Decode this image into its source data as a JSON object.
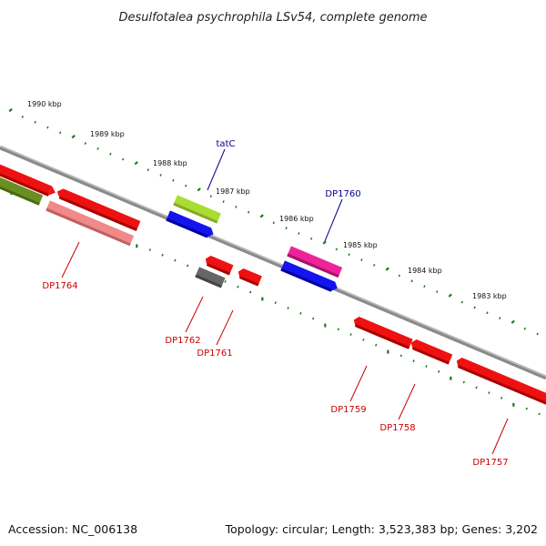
{
  "title": "Desulfotalea psychrophila LSv54, complete genome",
  "footer": {
    "accession": "Accession: NC_006138",
    "summary": "Topology: circular; Length: 3,523,383 bp; Genes: 3,202"
  },
  "scale_labels": [
    "1990 kbp",
    "1989 kbp",
    "1988 kbp",
    "1987 kbp",
    "1986 kbp",
    "1985 kbp",
    "1984 kbp",
    "1983 kbp"
  ],
  "gene_labels": [
    "tatC",
    "DP1760",
    "DP1764",
    "DP1762",
    "DP1761",
    "DP1759",
    "DP1758",
    "DP1757"
  ],
  "colors": {
    "backbone": "#8a8a8a",
    "tick": "#1a7a1a",
    "red": "#ee1111",
    "pink": "#f08a8a",
    "olive": "#6b8e23",
    "lime": "#aadd33",
    "blue": "#1414ee",
    "magenta": "#ee2299",
    "gray": "#666666",
    "label_blue": "#00008b",
    "label_red": "#cc0000"
  }
}
